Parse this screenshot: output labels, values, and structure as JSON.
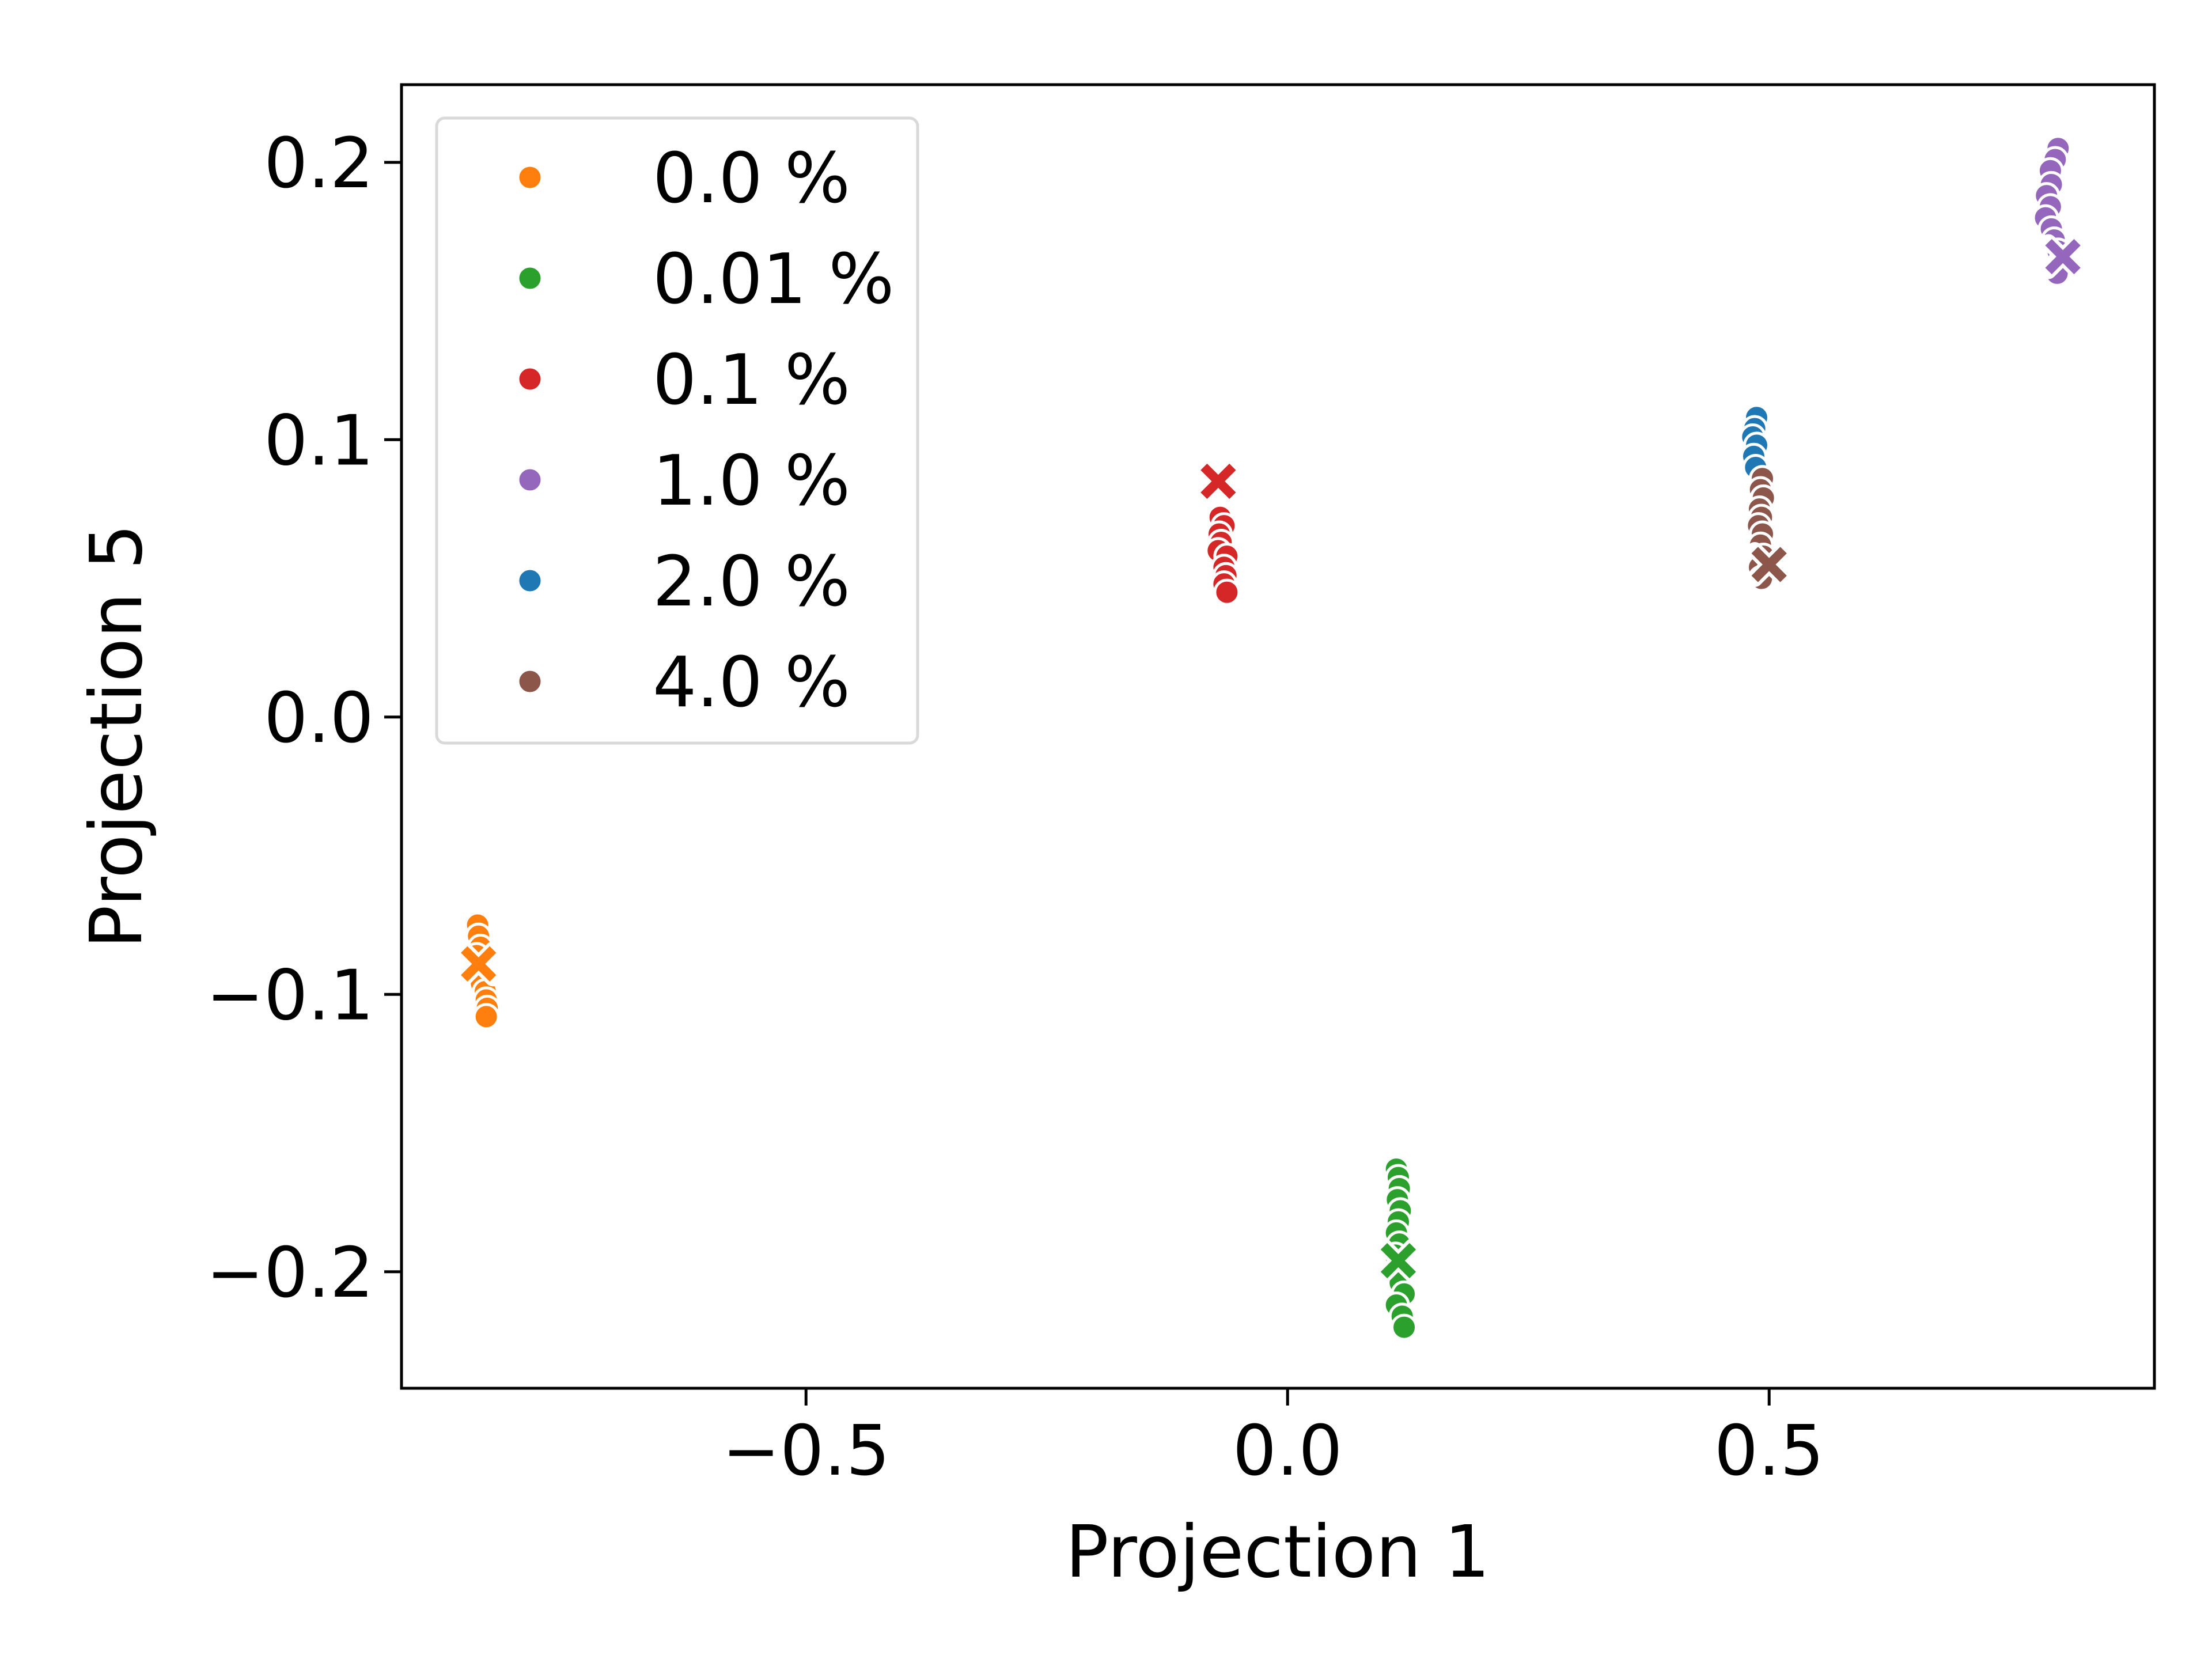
{
  "chart_data": {
    "type": "scatter",
    "title": "",
    "xlabel": "Projection 1",
    "ylabel": "Projection 5",
    "xlim": [
      -0.92,
      0.9
    ],
    "ylim": [
      -0.242,
      0.228
    ],
    "xticks": [
      {
        "value": -0.5,
        "label": "−0.5"
      },
      {
        "value": 0.0,
        "label": "0.0"
      },
      {
        "value": 0.5,
        "label": "0.5"
      }
    ],
    "yticks": [
      {
        "value": 0.2,
        "label": "0.2"
      },
      {
        "value": 0.1,
        "label": "0.1"
      },
      {
        "value": 0.0,
        "label": "0.0"
      },
      {
        "value": -0.1,
        "label": "−0.1"
      },
      {
        "value": -0.2,
        "label": "−0.2"
      }
    ],
    "grid": false,
    "legend_position": "top-left",
    "series": [
      {
        "name": "0.0 %",
        "color": "#ff7f0e",
        "points": [
          [
            -0.841,
            -0.075
          ],
          [
            -0.84,
            -0.079
          ],
          [
            -0.838,
            -0.083
          ],
          [
            -0.842,
            -0.086
          ],
          [
            -0.839,
            -0.09
          ],
          [
            -0.835,
            -0.093
          ],
          [
            -0.837,
            -0.096
          ],
          [
            -0.833,
            -0.099
          ],
          [
            -0.832,
            -0.102
          ],
          [
            -0.831,
            -0.105
          ],
          [
            -0.832,
            -0.108
          ]
        ],
        "centroid": [
          -0.84,
          -0.089
        ]
      },
      {
        "name": "0.01 %",
        "color": "#2ca02c",
        "points": [
          [
            0.113,
            -0.163
          ],
          [
            0.115,
            -0.166
          ],
          [
            0.116,
            -0.17
          ],
          [
            0.114,
            -0.174
          ],
          [
            0.117,
            -0.178
          ],
          [
            0.115,
            -0.182
          ],
          [
            0.113,
            -0.186
          ],
          [
            0.116,
            -0.19
          ],
          [
            0.112,
            -0.194
          ],
          [
            0.114,
            -0.2
          ],
          [
            0.117,
            -0.204
          ],
          [
            0.121,
            -0.208
          ],
          [
            0.113,
            -0.212
          ],
          [
            0.119,
            -0.216
          ],
          [
            0.121,
            -0.22
          ]
        ],
        "centroid": [
          0.115,
          -0.196
        ]
      },
      {
        "name": "0.1 %",
        "color": "#d62728",
        "points": [
          [
            -0.07,
            0.072
          ],
          [
            -0.066,
            0.069
          ],
          [
            -0.071,
            0.066
          ],
          [
            -0.069,
            0.063
          ],
          [
            -0.072,
            0.06
          ],
          [
            -0.063,
            0.058
          ],
          [
            -0.066,
            0.054
          ],
          [
            -0.064,
            0.051
          ],
          [
            -0.066,
            0.048
          ],
          [
            -0.063,
            0.045
          ]
        ],
        "centroid": [
          -0.072,
          0.085
        ]
      },
      {
        "name": "1.0 %",
        "color": "#9467bd",
        "points": [
          [
            0.8,
            0.205
          ],
          [
            0.797,
            0.201
          ],
          [
            0.792,
            0.197
          ],
          [
            0.793,
            0.192
          ],
          [
            0.788,
            0.188
          ],
          [
            0.792,
            0.184
          ],
          [
            0.787,
            0.18
          ],
          [
            0.793,
            0.176
          ],
          [
            0.796,
            0.172
          ],
          [
            0.8,
            0.168
          ],
          [
            0.803,
            0.164
          ],
          [
            0.799,
            0.16
          ]
        ],
        "centroid": [
          0.805,
          0.166
        ]
      },
      {
        "name": "2.0 %",
        "color": "#1f77b4",
        "points": [
          [
            0.487,
            0.108
          ],
          [
            0.485,
            0.104
          ],
          [
            0.483,
            0.101
          ],
          [
            0.487,
            0.098
          ],
          [
            0.484,
            0.094
          ],
          [
            0.486,
            0.09
          ]
        ],
        "centroid": null
      },
      {
        "name": "4.0 %",
        "color": "#8c564b",
        "points": [
          [
            0.493,
            0.086
          ],
          [
            0.491,
            0.082
          ],
          [
            0.494,
            0.079
          ],
          [
            0.49,
            0.075
          ],
          [
            0.492,
            0.072
          ],
          [
            0.489,
            0.069
          ],
          [
            0.493,
            0.066
          ],
          [
            0.491,
            0.062
          ],
          [
            0.494,
            0.058
          ],
          [
            0.49,
            0.054
          ],
          [
            0.492,
            0.05
          ]
        ],
        "centroid": [
          0.5,
          0.055
        ]
      }
    ]
  }
}
